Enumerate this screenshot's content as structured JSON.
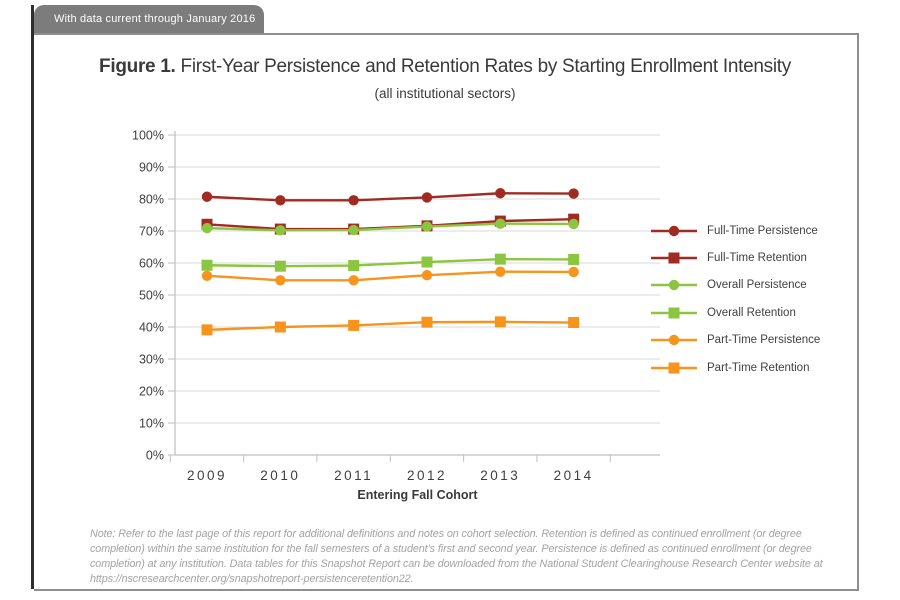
{
  "banner": {
    "label": "With data current through January 2016"
  },
  "figure": {
    "title_prefix": "Figure 1.",
    "title_rest": " First-Year Persistence and Retention Rates by Starting Enrollment Intensity",
    "subtitle": "(all institutional sectors)"
  },
  "chart_data": {
    "type": "line",
    "categories": [
      "2009",
      "2010",
      "2011",
      "2012",
      "2013",
      "2014"
    ],
    "xlabel": "Entering Fall Cohort",
    "ylabel": "",
    "ylim": [
      0,
      100
    ],
    "ytick_step": 10,
    "ytick_labels": [
      "0%",
      "10%",
      "20%",
      "30%",
      "40%",
      "50%",
      "60%",
      "70%",
      "80%",
      "90%",
      "100%"
    ],
    "grid": true,
    "legend_position": "right",
    "series": [
      {
        "name": "Full-Time Persistence",
        "marker": "circle",
        "color": "#A02B23",
        "values": [
          80.7,
          79.6,
          79.6,
          80.5,
          81.8,
          81.7
        ]
      },
      {
        "name": "Full-Time Retention",
        "marker": "square",
        "color": "#A02B23",
        "values": [
          72.1,
          70.6,
          70.6,
          71.6,
          73.1,
          73.7
        ]
      },
      {
        "name": "Overall Persistence",
        "marker": "circle",
        "color": "#8CC540",
        "values": [
          70.9,
          70.2,
          70.3,
          71.4,
          72.3,
          72.2
        ]
      },
      {
        "name": "Overall Retention",
        "marker": "square",
        "color": "#8CC540",
        "values": [
          59.3,
          59.0,
          59.2,
          60.3,
          61.2,
          61.1
        ]
      },
      {
        "name": "Part-Time Persistence",
        "marker": "circle",
        "color": "#F6941E",
        "values": [
          56.0,
          54.6,
          54.6,
          56.2,
          57.3,
          57.2
        ]
      },
      {
        "name": "Part-Time Retention",
        "marker": "square",
        "color": "#F6941E",
        "values": [
          39.1,
          40.0,
          40.5,
          41.5,
          41.6,
          41.4
        ]
      }
    ],
    "colors": {
      "gridline": "#D9D9D9",
      "axis": "#BFBFBF",
      "tick_text": "#3F3F3F"
    }
  },
  "note": {
    "text": "Note: Refer to the last page of this report for additional definitions and notes on cohort selection. Retention is defined as continued enrollment (or degree completion) within the same institution for the fall semesters of a student’s first and second year. Persistence is defined as continued enrollment (or degree completion) at any institution. Data tables for this Snapshot Report can be downloaded from the National Student Clearinghouse Research Center website at https://nscresearchcenter.org/snapshotreport-persistenceretention22."
  }
}
